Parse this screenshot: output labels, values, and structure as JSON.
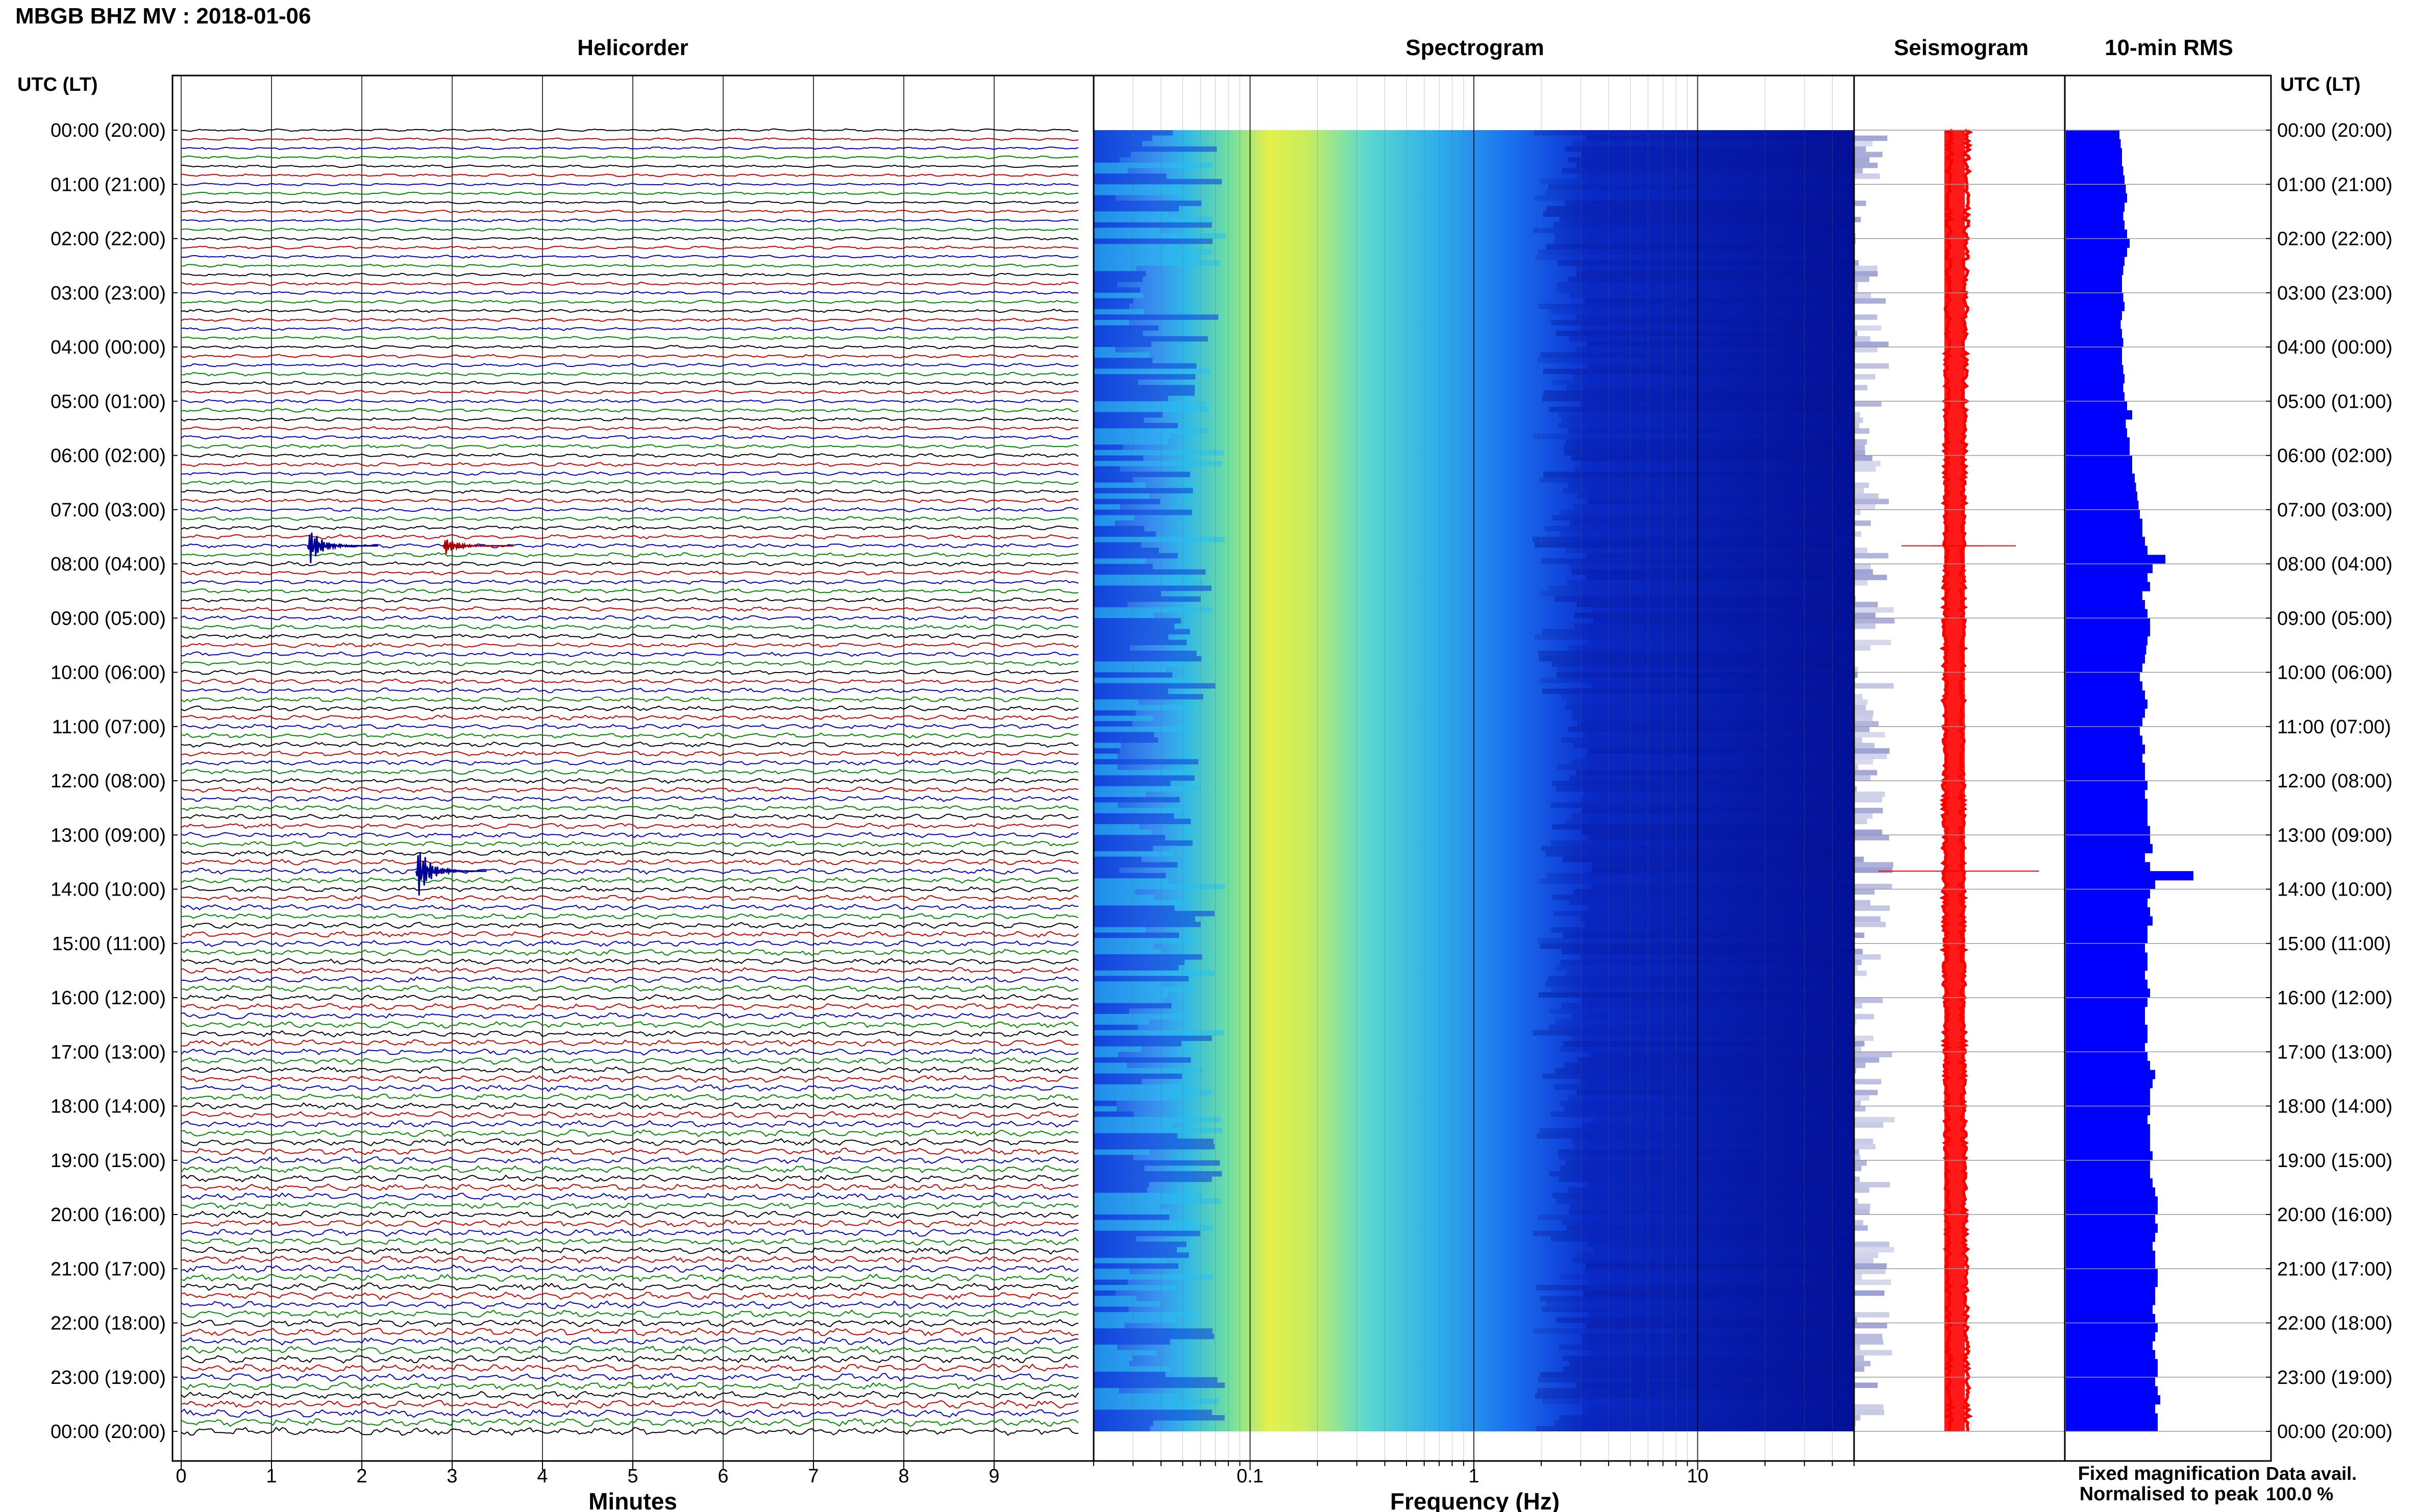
{
  "header": {
    "title": "MBGB BHZ MV : 2018-01-06"
  },
  "panels": {
    "helicorder": "Helicorder",
    "spectrogram": "Spectrogram",
    "seismogram": "Seismogram",
    "rms": "10-min RMS"
  },
  "axes": {
    "left_label": "UTC (LT)",
    "right_label": "UTC (LT)",
    "minutes_label": "Minutes",
    "frequency_label": "Frequency (Hz)"
  },
  "legend": {
    "fixed": "Fixed magnification",
    "normalised": "Normalised to peak",
    "fixed_color": "#0000ff",
    "normalised_color": "#ff0000"
  },
  "availability": {
    "label": "Data avail.",
    "value": "100.0 %"
  },
  "colors": {
    "trace_cycle": [
      "#000000",
      "#cc0000",
      "#0000cc",
      "#008800"
    ],
    "rms_bar": "#0000ff",
    "seismogram": "#ff0000"
  },
  "chart_data": [
    {
      "type": "line",
      "name": "helicorder",
      "xlabel": "Minutes",
      "xlim": [
        0,
        10
      ],
      "xticks": [
        0,
        1,
        2,
        3,
        4,
        5,
        6,
        7,
        8,
        9
      ],
      "time_labels": [
        "00:00 (20:00)",
        "01:00 (21:00)",
        "02:00 (22:00)",
        "03:00 (23:00)",
        "04:00 (00:00)",
        "05:00 (01:00)",
        "06:00 (02:00)",
        "07:00 (03:00)",
        "08:00 (04:00)",
        "09:00 (05:00)",
        "10:00 (06:00)",
        "11:00 (07:00)",
        "12:00 (08:00)",
        "13:00 (09:00)",
        "14:00 (10:00)",
        "15:00 (11:00)",
        "16:00 (12:00)",
        "17:00 (13:00)",
        "18:00 (14:00)",
        "19:00 (15:00)",
        "20:00 (16:00)",
        "21:00 (17:00)",
        "22:00 (18:00)",
        "23:00 (19:00)",
        "00:00 (20:00)"
      ],
      "line_interval_min": 10,
      "lines_count": 144,
      "events": [
        {
          "time_utc": "07:40",
          "minute": 1.4,
          "relative_amplitude": 3.2
        },
        {
          "time_utc": "07:40",
          "minute": 2.9,
          "relative_amplitude": 1.5
        },
        {
          "time_utc": "13:40",
          "minute": 2.6,
          "relative_amplitude": 4.5
        }
      ]
    },
    {
      "type": "heatmap",
      "name": "spectrogram",
      "xlabel": "Frequency (Hz)",
      "xscale": "log",
      "xlim": [
        0.02,
        50
      ],
      "xticks": [
        0.1,
        1,
        10
      ],
      "dominant_band_hz": [
        0.15,
        0.3
      ],
      "colormap": [
        "#00008b",
        "#0000ff",
        "#00bfff",
        "#40e0d0",
        "#ffff00"
      ]
    },
    {
      "type": "line",
      "name": "seismogram",
      "description_values": {
        "events_utc": [
          "07:40",
          "13:40"
        ]
      }
    },
    {
      "type": "bar",
      "name": "10-min RMS",
      "interval_min": 10,
      "values": [
        0.42,
        0.43,
        0.44,
        0.44,
        0.45,
        0.46,
        0.47,
        0.48,
        0.46,
        0.45,
        0.46,
        0.48,
        0.5,
        0.48,
        0.46,
        0.45,
        0.44,
        0.44,
        0.45,
        0.46,
        0.44,
        0.43,
        0.44,
        0.45,
        0.44,
        0.44,
        0.45,
        0.46,
        0.45,
        0.46,
        0.48,
        0.52,
        0.47,
        0.48,
        0.5,
        0.5,
        0.52,
        0.52,
        0.54,
        0.55,
        0.56,
        0.57,
        0.58,
        0.6,
        0.6,
        0.62,
        0.64,
        0.78,
        0.68,
        0.64,
        0.66,
        0.6,
        0.62,
        0.64,
        0.66,
        0.66,
        0.64,
        0.63,
        0.62,
        0.6,
        0.58,
        0.6,
        0.62,
        0.64,
        0.62,
        0.6,
        0.58,
        0.6,
        0.62,
        0.6,
        0.62,
        0.62,
        0.64,
        0.62,
        0.64,
        0.64,
        0.64,
        0.66,
        0.66,
        0.68,
        0.62,
        0.66,
        1.0,
        0.7,
        0.66,
        0.64,
        0.66,
        0.68,
        0.64,
        0.64,
        0.62,
        0.64,
        0.64,
        0.62,
        0.64,
        0.66,
        0.64,
        0.62,
        0.62,
        0.64,
        0.64,
        0.62,
        0.64,
        0.66,
        0.7,
        0.68,
        0.66,
        0.66,
        0.66,
        0.64,
        0.66,
        0.66,
        0.66,
        0.68,
        0.66,
        0.66,
        0.68,
        0.7,
        0.72,
        0.72,
        0.7,
        0.72,
        0.7,
        0.68,
        0.7,
        0.7,
        0.72,
        0.72,
        0.7,
        0.7,
        0.68,
        0.7,
        0.72,
        0.7,
        0.68,
        0.7,
        0.72,
        0.72,
        0.7,
        0.72,
        0.74,
        0.7,
        0.72,
        0.72
      ]
    }
  ]
}
